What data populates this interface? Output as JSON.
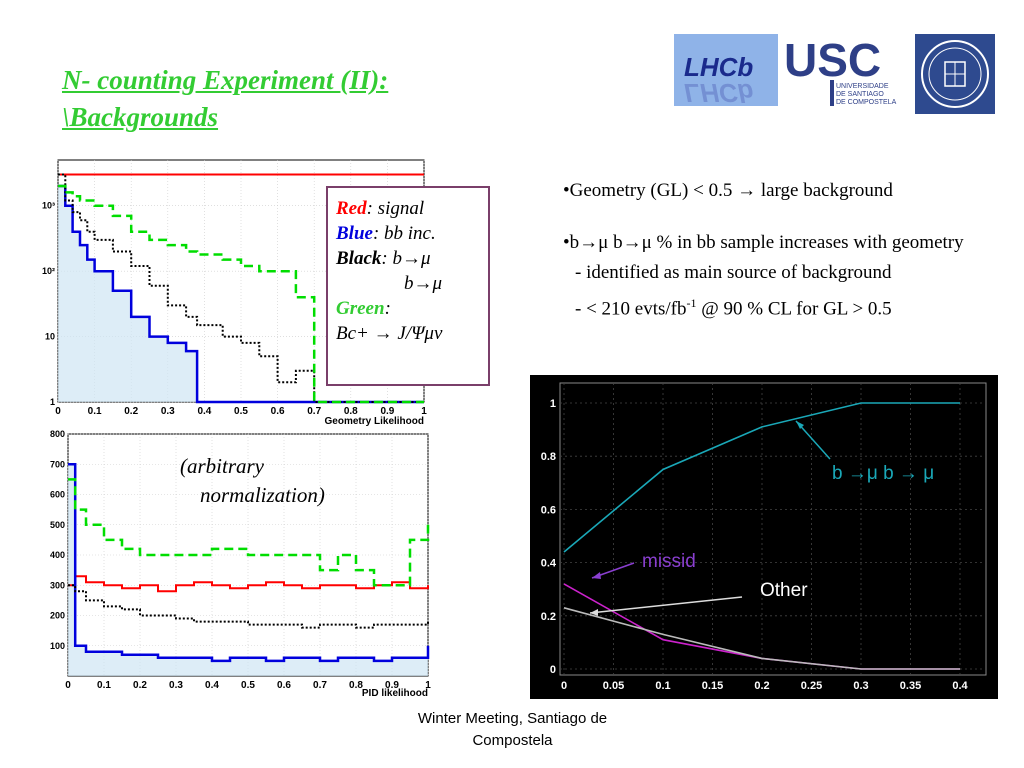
{
  "slide": {
    "title_line1": "N- counting Experiment (II):",
    "title_line2": "\\Backgrounds",
    "footer": "Winter Meeting, Santiago de Compostela",
    "logos": {
      "lhcb_text": "LHCb",
      "usc_text": "USC",
      "usc_sub1": "UNIVERSIDADE",
      "usc_sub2": "DE SANTIAGO",
      "usc_sub3": "DE COMPOSTELA"
    },
    "bullets": [
      "•Geometry (GL) < 0.5 → large background",
      "•b→μ b→μ % in bb sample increases with geometry",
      "- identified as main source of background",
      "- < 210 evts/fb",
      "-1",
      " @ 90 % CL for GL > 0.5"
    ],
    "legend": {
      "red_label": "Red",
      "red_text": ": signal",
      "blue_label": "Blue",
      "blue_text": ": bb inc.",
      "black_label": "Black",
      "black_text": ": b→μ",
      "black_text2": "b→μ",
      "green_label": "Green",
      "green_text": ":",
      "green_text2": "Bc+ → J/Ψμν"
    },
    "arbitrary_note_line1": "(arbitrary",
    "arbitrary_note_line2": "normalization)"
  },
  "colors": {
    "title_green": "#33cc33",
    "signal_red": "#ff0000",
    "bb_blue": "#0000dd",
    "bmu_black": "#000000",
    "bc_green": "#00dd00",
    "plot_bg": "#000000",
    "cyan": "#1aa8b8",
    "magenta": "#cc22cc"
  },
  "chart_data": [
    {
      "type": "line",
      "title": "",
      "xlabel": "Geometry Likelihood",
      "ylabel": "",
      "xlim": [
        0,
        1
      ],
      "ylim": [
        1,
        5000
      ],
      "yscale": "log",
      "xticks": [
        "0",
        "0.1",
        "0.2",
        "0.3",
        "0.4",
        "0.5",
        "0.6",
        "0.7",
        "0.8",
        "0.9",
        "1"
      ],
      "yticks": [
        "1",
        "10",
        "10²",
        "10³"
      ],
      "x": [
        0.0,
        0.02,
        0.04,
        0.06,
        0.08,
        0.1,
        0.15,
        0.2,
        0.25,
        0.3,
        0.35,
        0.38,
        0.45,
        0.5,
        0.55,
        0.6,
        0.65,
        0.7,
        1.0
      ],
      "series": [
        {
          "name": "Red",
          "values": [
            3000,
            3000,
            3000,
            3000,
            3000,
            3000,
            3000,
            3000,
            3000,
            3000,
            3000,
            3000,
            3000,
            3000,
            3000,
            3000,
            3000,
            3000,
            3000
          ]
        },
        {
          "name": "Blue",
          "values": [
            2000,
            1000,
            400,
            250,
            150,
            100,
            50,
            20,
            10,
            8,
            6,
            1,
            1,
            1,
            1,
            1,
            1,
            1,
            1
          ]
        },
        {
          "name": "Black",
          "values": [
            3000,
            1200,
            800,
            600,
            400,
            300,
            200,
            120,
            60,
            30,
            20,
            15,
            10,
            8,
            5,
            2,
            3,
            1,
            1
          ]
        },
        {
          "name": "Green",
          "values": [
            2000,
            1600,
            1400,
            1200,
            1200,
            1000,
            700,
            400,
            300,
            250,
            200,
            180,
            150,
            120,
            100,
            100,
            40,
            1,
            1
          ]
        }
      ],
      "grid": true
    },
    {
      "type": "line",
      "title": "",
      "xlabel": "PID likelihood",
      "ylabel": "",
      "xlim": [
        0,
        1
      ],
      "ylim": [
        0,
        800
      ],
      "xticks": [
        "0",
        "0.1",
        "0.2",
        "0.3",
        "0.4",
        "0.5",
        "0.6",
        "0.7",
        "0.8",
        "0.9",
        "1"
      ],
      "yticks": [
        "100",
        "200",
        "300",
        "400",
        "500",
        "600",
        "700",
        "800"
      ],
      "x": [
        0.0,
        0.02,
        0.05,
        0.1,
        0.15,
        0.2,
        0.25,
        0.3,
        0.35,
        0.4,
        0.45,
        0.5,
        0.55,
        0.6,
        0.65,
        0.7,
        0.75,
        0.8,
        0.85,
        0.9,
        0.95,
        1.0
      ],
      "series": [
        {
          "name": "Red",
          "values": [
            300,
            330,
            310,
            300,
            290,
            300,
            280,
            300,
            310,
            300,
            290,
            300,
            310,
            300,
            290,
            300,
            300,
            290,
            300,
            310,
            290,
            300
          ]
        },
        {
          "name": "Blue",
          "values": [
            700,
            100,
            80,
            80,
            70,
            70,
            60,
            60,
            60,
            50,
            60,
            60,
            50,
            60,
            60,
            50,
            60,
            60,
            50,
            60,
            60,
            100
          ]
        },
        {
          "name": "Black",
          "values": [
            300,
            280,
            250,
            230,
            220,
            200,
            200,
            190,
            180,
            180,
            180,
            170,
            170,
            170,
            160,
            170,
            170,
            160,
            170,
            170,
            170,
            180
          ]
        },
        {
          "name": "Green",
          "values": [
            650,
            550,
            500,
            450,
            420,
            400,
            400,
            400,
            400,
            420,
            420,
            400,
            400,
            400,
            400,
            350,
            400,
            350,
            300,
            300,
            450,
            500
          ]
        }
      ],
      "grid": true
    },
    {
      "type": "line",
      "title": "",
      "xlabel": "",
      "ylabel": "",
      "xlim": [
        0,
        0.4
      ],
      "ylim": [
        0,
        1
      ],
      "xticks": [
        "0",
        "0.05",
        "0.1",
        "0.15",
        "0.2",
        "0.25",
        "0.3",
        "0.35",
        "0.4"
      ],
      "yticks": [
        "0",
        "0.2",
        "0.4",
        "0.6",
        "0.8",
        "1"
      ],
      "x": [
        0,
        0.1,
        0.2,
        0.3,
        0.4
      ],
      "series": [
        {
          "name": "b →μ b → μ",
          "values": [
            0.44,
            0.75,
            0.91,
            1.0,
            1.0
          ]
        },
        {
          "name": "missid",
          "values": [
            0.32,
            0.11,
            0.04,
            0.0,
            0.0
          ]
        },
        {
          "name": "Other",
          "values": [
            0.23,
            0.13,
            0.04,
            0.0,
            0.0
          ]
        }
      ],
      "annotations": [
        "b →μ b → μ",
        "missid",
        "Other"
      ],
      "grid": true
    }
  ]
}
